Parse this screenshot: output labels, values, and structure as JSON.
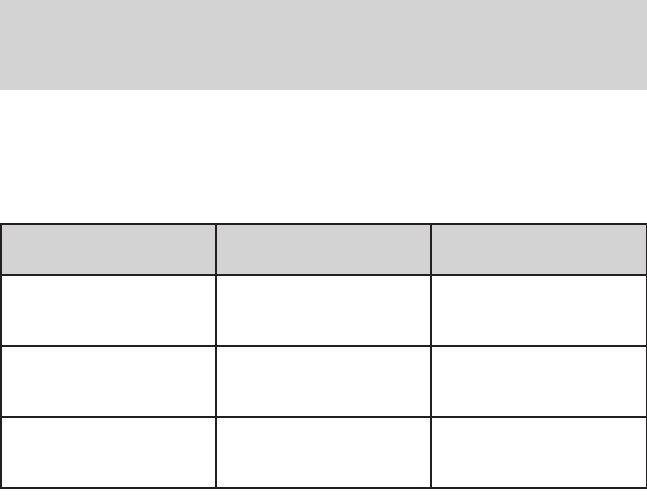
{
  "header_band": {
    "color": "#d3d3d3"
  },
  "table": {
    "header_fill": "#d3d3d3",
    "border_color": "#231f20",
    "columns": [
      "",
      "",
      ""
    ],
    "rows": [
      [
        "",
        "",
        ""
      ],
      [
        "",
        "",
        ""
      ],
      [
        "",
        "",
        ""
      ]
    ]
  }
}
